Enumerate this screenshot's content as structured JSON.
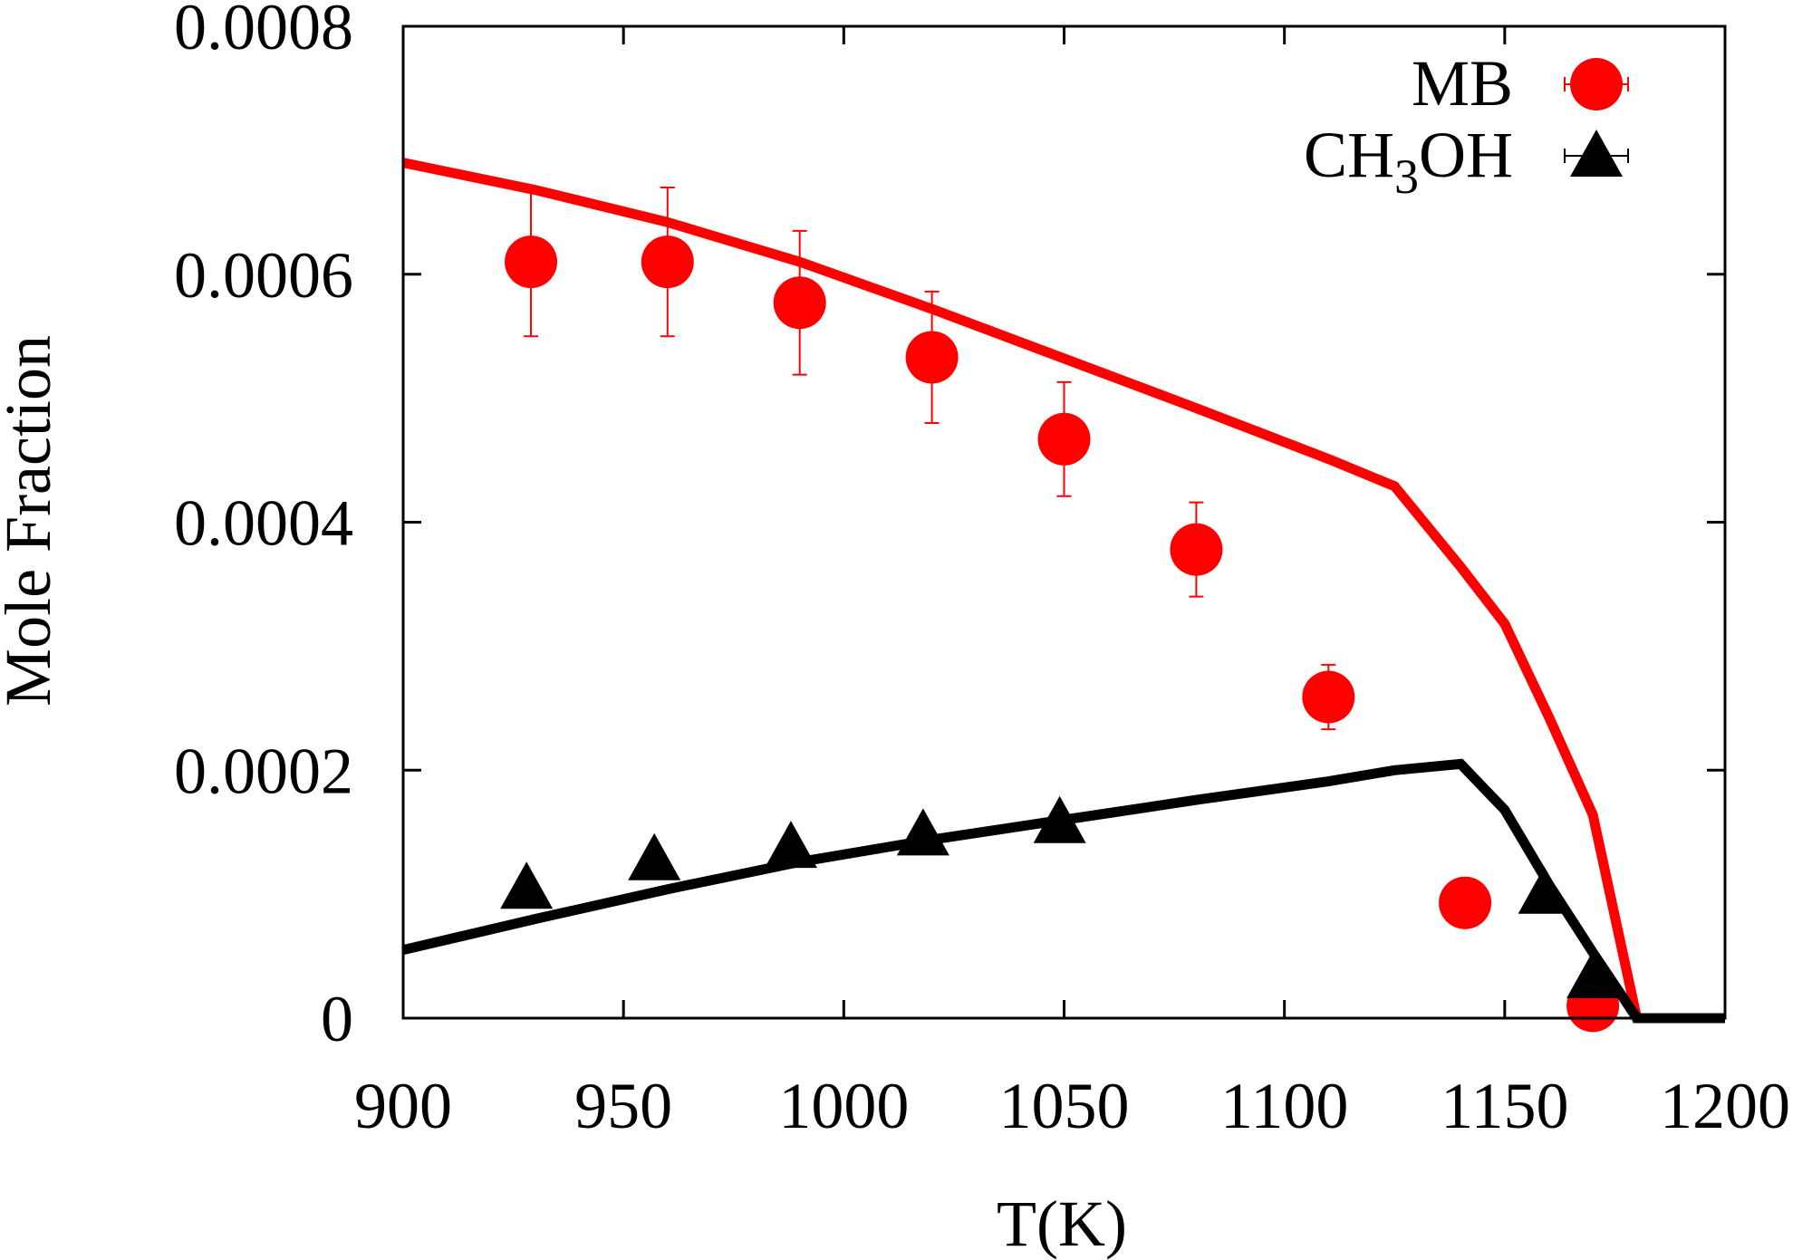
{
  "chart_data": {
    "type": "scatter",
    "title": "",
    "xlabel": "T(K)",
    "ylabel": "Mole Fraction",
    "xlim": [
      900,
      1200
    ],
    "ylim": [
      0,
      0.0008
    ],
    "x_ticks": [
      900,
      950,
      1000,
      1050,
      1100,
      1150,
      1200
    ],
    "x_tick_labels": [
      "900",
      "950",
      "1000",
      "1050",
      "1100",
      "1150",
      "1200"
    ],
    "y_ticks": [
      0,
      0.0002,
      0.0004,
      0.0006,
      0.0008
    ],
    "y_tick_labels": [
      "0",
      "0.0002",
      "0.0004",
      "0.0006",
      "0.0008"
    ],
    "grid": false,
    "legend_position": "top-right",
    "series": [
      {
        "name": "MB",
        "legend_text": "MB",
        "color": "#ff0000",
        "marker": "circle",
        "points": [
          {
            "x": 929,
            "y": 0.00061,
            "err": 6e-05
          },
          {
            "x": 960,
            "y": 0.00061,
            "err": 6e-05
          },
          {
            "x": 990,
            "y": 0.000577,
            "err": 5.8e-05
          },
          {
            "x": 1020,
            "y": 0.000533,
            "err": 5.3e-05
          },
          {
            "x": 1050,
            "y": 0.000467,
            "err": 4.6e-05
          },
          {
            "x": 1080,
            "y": 0.000378,
            "err": 3.8e-05
          },
          {
            "x": 1110,
            "y": 0.000259,
            "err": 2.6e-05
          },
          {
            "x": 1141,
            "y": 9.3e-05,
            "err": 2e-06
          },
          {
            "x": 1170,
            "y": 1e-05,
            "err": 1e-06
          }
        ],
        "model_x": [
          900,
          930,
          960,
          990,
          1020,
          1050,
          1080,
          1110,
          1125,
          1140,
          1150,
          1160,
          1170,
          1180,
          1200
        ],
        "model_y": [
          0.00069,
          0.000668,
          0.000642,
          0.00061,
          0.000572,
          0.000532,
          0.000492,
          0.000451,
          0.000429,
          0.000364,
          0.000318,
          0.000243,
          0.000164,
          0,
          0
        ]
      },
      {
        "name": "CH3OH",
        "legend_text": "CH",
        "legend_sub": "3",
        "legend_tail": "OH",
        "color": "#000000",
        "marker": "triangle",
        "points": [
          {
            "x": 928,
            "y": 0.000105,
            "err": 2e-06
          },
          {
            "x": 957,
            "y": 0.000128,
            "err": 3e-06
          },
          {
            "x": 988,
            "y": 0.000138,
            "err": 3e-06
          },
          {
            "x": 1018,
            "y": 0.000148,
            "err": 3e-06
          },
          {
            "x": 1049,
            "y": 0.000158,
            "err": 4e-06
          },
          {
            "x": 1159,
            "y": 0.000101,
            "err": 2e-06
          },
          {
            "x": 1170,
            "y": 3.3e-05,
            "err": 1e-06
          }
        ],
        "model_x": [
          900,
          930,
          960,
          990,
          1020,
          1050,
          1080,
          1110,
          1125,
          1140,
          1150,
          1160,
          1170,
          1180,
          1200
        ],
        "model_y": [
          5.5e-05,
          8e-05,
          0.000104,
          0.000126,
          0.000144,
          0.00016,
          0.000176,
          0.000191,
          0.0002,
          0.000205,
          0.000168,
          0.000108,
          5.3e-05,
          0,
          0
        ]
      }
    ]
  }
}
